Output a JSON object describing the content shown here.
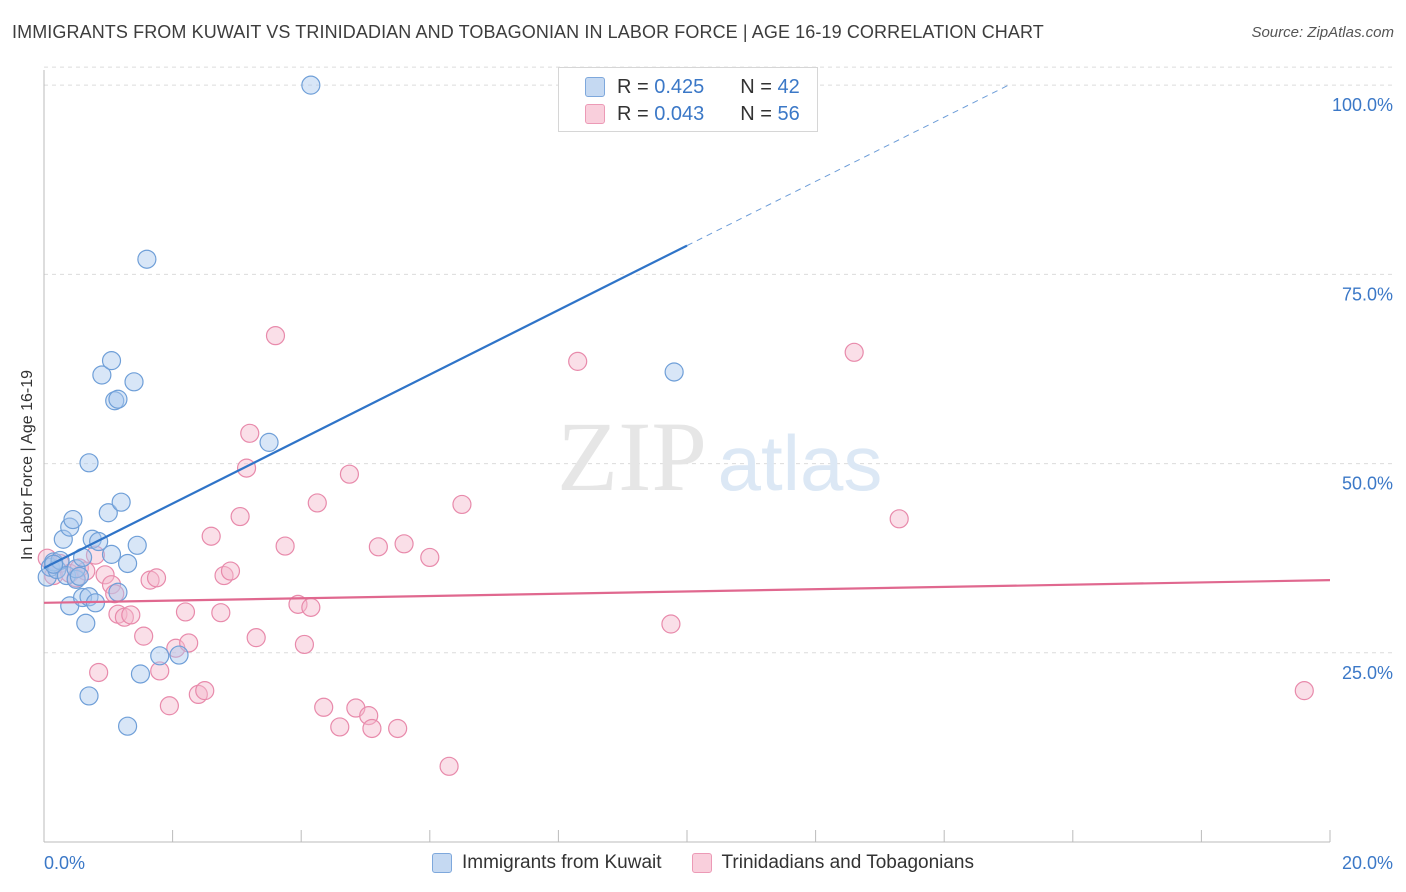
{
  "title": "IMMIGRANTS FROM KUWAIT VS TRINIDADIAN AND TOBAGONIAN IN LABOR FORCE | AGE 16-19 CORRELATION CHART",
  "source": "Source: ZipAtlas.com",
  "watermark": {
    "zip": "ZIP",
    "atlas": "atlas"
  },
  "legend": {
    "r_label": "R =",
    "n_label": "N =",
    "series": [
      {
        "r": "0.425",
        "n": "42"
      },
      {
        "r": "0.043",
        "n": "56"
      }
    ]
  },
  "colors": {
    "blue_fill": "#a9c8ee",
    "blue_stroke": "#6f9fd8",
    "blue_line": "#2f74c8",
    "pink_fill": "#f5b7cb",
    "pink_stroke": "#e88aab",
    "pink_line": "#e0688f",
    "axis_text": "#3b78c7",
    "grid": "#dcdcdc"
  },
  "chart_data": {
    "type": "scatter",
    "title": "IMMIGRANTS FROM KUWAIT VS TRINIDADIAN AND TOBAGONIAN IN LABOR FORCE | AGE 16-19 CORRELATION CHART",
    "xlabel": "",
    "ylabel": "In Labor Force | Age 16-19",
    "xlim": [
      0,
      20
    ],
    "ylim": [
      0,
      102
    ],
    "x_tick_labels": [
      "0.0%",
      "20.0%"
    ],
    "y_ticks": [
      25,
      50,
      75,
      100
    ],
    "y_tick_labels": [
      "25.0%",
      "50.0%",
      "75.0%",
      "100.0%"
    ],
    "grid": true,
    "legend_placement": "bottom",
    "series": [
      {
        "name": "Immigrants from Kuwait",
        "color": "#a9c8ee",
        "points": [
          [
            0.05,
            35.0
          ],
          [
            0.1,
            36.3
          ],
          [
            0.15,
            37.0
          ],
          [
            0.2,
            36.0
          ],
          [
            0.25,
            37.2
          ],
          [
            0.3,
            40.0
          ],
          [
            0.35,
            35.2
          ],
          [
            0.4,
            41.6
          ],
          [
            0.4,
            31.2
          ],
          [
            0.45,
            42.6
          ],
          [
            0.5,
            34.7
          ],
          [
            0.5,
            36.1
          ],
          [
            0.55,
            35.1
          ],
          [
            0.6,
            37.6
          ],
          [
            0.6,
            32.3
          ],
          [
            0.65,
            28.9
          ],
          [
            0.7,
            32.4
          ],
          [
            0.7,
            19.3
          ],
          [
            0.7,
            50.1
          ],
          [
            0.75,
            40.0
          ],
          [
            0.8,
            31.6
          ],
          [
            0.85,
            39.7
          ],
          [
            0.9,
            61.7
          ],
          [
            1.0,
            43.5
          ],
          [
            1.05,
            63.6
          ],
          [
            1.05,
            38.0
          ],
          [
            1.15,
            33.0
          ],
          [
            1.1,
            58.3
          ],
          [
            1.15,
            58.5
          ],
          [
            1.2,
            44.9
          ],
          [
            1.3,
            36.8
          ],
          [
            1.3,
            15.3
          ],
          [
            1.4,
            60.8
          ],
          [
            1.45,
            39.2
          ],
          [
            1.5,
            22.2
          ],
          [
            1.6,
            77.0
          ],
          [
            1.8,
            24.6
          ],
          [
            2.1,
            24.7
          ],
          [
            3.5,
            52.8
          ],
          [
            4.15,
            100.0
          ],
          [
            9.8,
            62.1
          ],
          [
            0.15,
            36.7
          ]
        ],
        "trend": {
          "x": [
            0,
            10.0
          ],
          "y": [
            36.2,
            78.8
          ],
          "dashed_to": [
            15.0,
            100.0
          ]
        }
      },
      {
        "name": "Trinidadians and Tobagonians",
        "color": "#f5b7cb",
        "points": [
          [
            0.05,
            37.5
          ],
          [
            0.15,
            35.2
          ],
          [
            0.25,
            36.8
          ],
          [
            0.4,
            35.5
          ],
          [
            0.5,
            34.9
          ],
          [
            0.55,
            36.2
          ],
          [
            0.65,
            35.8
          ],
          [
            0.8,
            37.9
          ],
          [
            0.85,
            22.4
          ],
          [
            0.95,
            35.3
          ],
          [
            1.05,
            34.0
          ],
          [
            1.1,
            32.8
          ],
          [
            1.15,
            30.1
          ],
          [
            1.25,
            29.7
          ],
          [
            1.35,
            30.0
          ],
          [
            1.55,
            27.2
          ],
          [
            1.65,
            34.6
          ],
          [
            1.75,
            34.9
          ],
          [
            1.8,
            22.6
          ],
          [
            1.95,
            18.0
          ],
          [
            2.05,
            25.6
          ],
          [
            2.2,
            30.4
          ],
          [
            2.25,
            26.3
          ],
          [
            2.4,
            19.5
          ],
          [
            2.5,
            20.0
          ],
          [
            2.6,
            40.4
          ],
          [
            2.75,
            30.3
          ],
          [
            2.8,
            35.2
          ],
          [
            2.9,
            35.8
          ],
          [
            3.05,
            43.0
          ],
          [
            3.15,
            49.4
          ],
          [
            3.2,
            54.0
          ],
          [
            3.3,
            27.0
          ],
          [
            3.6,
            66.9
          ],
          [
            3.75,
            39.1
          ],
          [
            3.95,
            31.4
          ],
          [
            4.05,
            26.1
          ],
          [
            4.15,
            31.0
          ],
          [
            4.25,
            44.8
          ],
          [
            4.35,
            17.8
          ],
          [
            4.6,
            15.2
          ],
          [
            4.75,
            48.6
          ],
          [
            4.85,
            17.7
          ],
          [
            5.05,
            16.7
          ],
          [
            5.1,
            15.0
          ],
          [
            5.2,
            39.0
          ],
          [
            5.5,
            15.0
          ],
          [
            5.6,
            39.4
          ],
          [
            6.0,
            37.6
          ],
          [
            6.3,
            10.0
          ],
          [
            6.5,
            44.6
          ],
          [
            8.3,
            63.5
          ],
          [
            9.75,
            28.8
          ],
          [
            12.6,
            64.7
          ],
          [
            13.3,
            42.7
          ],
          [
            19.6,
            20.0
          ]
        ],
        "trend": {
          "x": [
            0,
            20
          ],
          "y": [
            31.6,
            34.6
          ]
        }
      }
    ]
  }
}
